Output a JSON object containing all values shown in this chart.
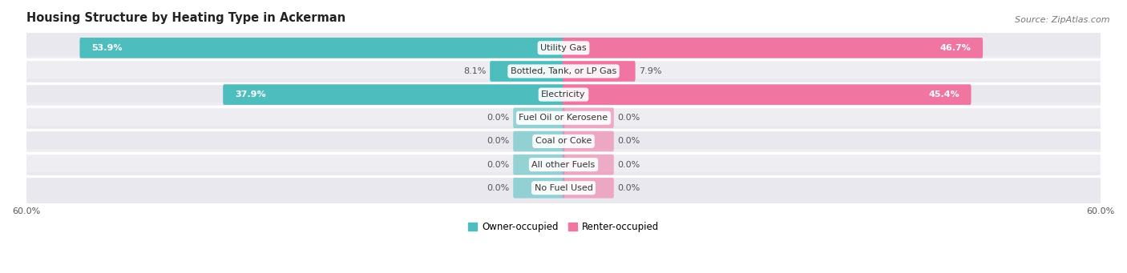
{
  "title": "Housing Structure by Heating Type in Ackerman",
  "source": "Source: ZipAtlas.com",
  "categories": [
    "Utility Gas",
    "Bottled, Tank, or LP Gas",
    "Electricity",
    "Fuel Oil or Kerosene",
    "Coal or Coke",
    "All other Fuels",
    "No Fuel Used"
  ],
  "owner_values": [
    53.9,
    8.1,
    37.9,
    0.0,
    0.0,
    0.0,
    0.0
  ],
  "renter_values": [
    46.7,
    7.9,
    45.4,
    0.0,
    0.0,
    0.0,
    0.0
  ],
  "owner_color": "#4dbdbd",
  "renter_color": "#f075a0",
  "bar_bg_even": "#e8e8ee",
  "bar_bg_odd": "#ededf2",
  "axis_max": 60.0,
  "label_owner": "Owner-occupied",
  "label_renter": "Renter-occupied",
  "title_fontsize": 10.5,
  "source_fontsize": 8,
  "tick_fontsize": 8,
  "value_fontsize": 8,
  "category_fontsize": 8,
  "zero_stub": 5.5
}
